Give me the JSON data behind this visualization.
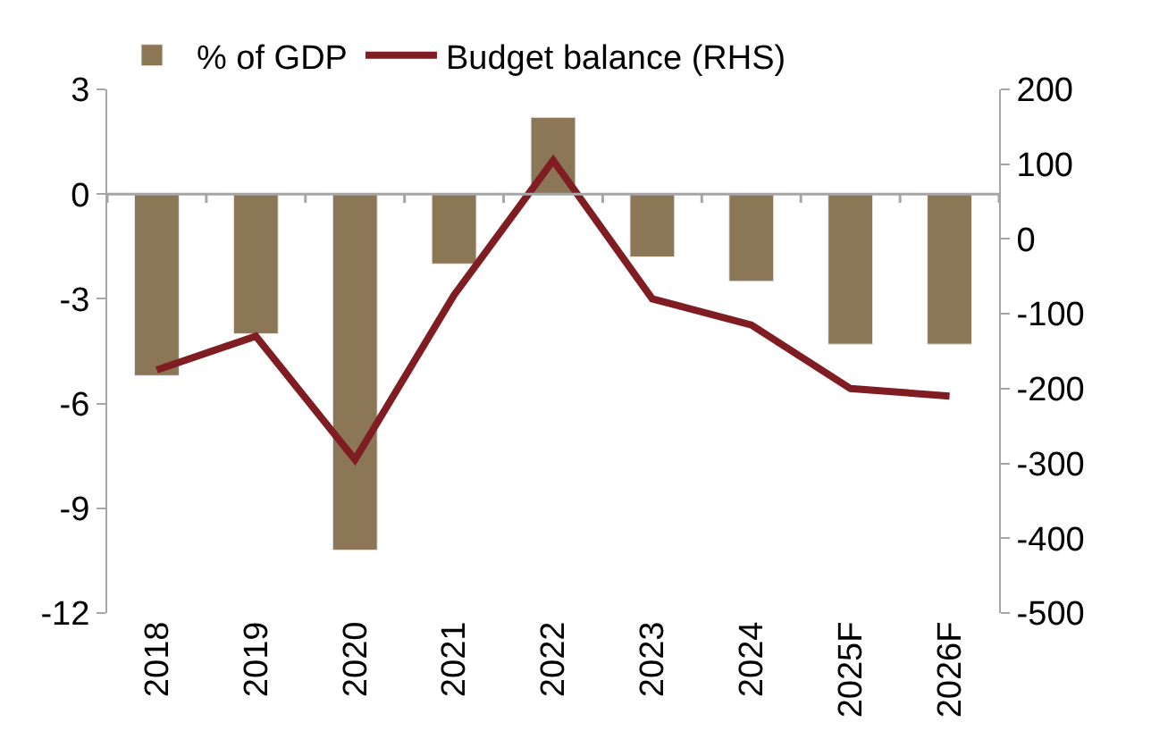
{
  "chart_data": {
    "type": "bar",
    "categories": [
      "2018",
      "2019",
      "2020",
      "2021",
      "2022",
      "2023",
      "2024",
      "2025F",
      "2026F"
    ],
    "series": [
      {
        "name": "% of GDP",
        "color": "#8b7755",
        "values": [
          -5.2,
          -4.0,
          -10.2,
          -2.0,
          2.2,
          -1.8,
          -2.5,
          -4.3,
          -4.3
        ]
      },
      {
        "name": "Budget balance (RHS)",
        "type": "line",
        "axis": "y2",
        "color": "#7f1d23",
        "values": [
          -175,
          -130,
          -295,
          -75,
          105,
          -80,
          -115,
          -200,
          -210
        ]
      }
    ],
    "ylim": [
      -12,
      3
    ],
    "yticks": [
      -12,
      -9,
      -6,
      -3,
      0,
      3
    ],
    "y2lim": [
      -500,
      200
    ],
    "y2ticks": [
      -500,
      -400,
      -300,
      -200,
      -100,
      0,
      100,
      200
    ],
    "legend": "top",
    "marker": "none",
    "line_style": "solid"
  }
}
